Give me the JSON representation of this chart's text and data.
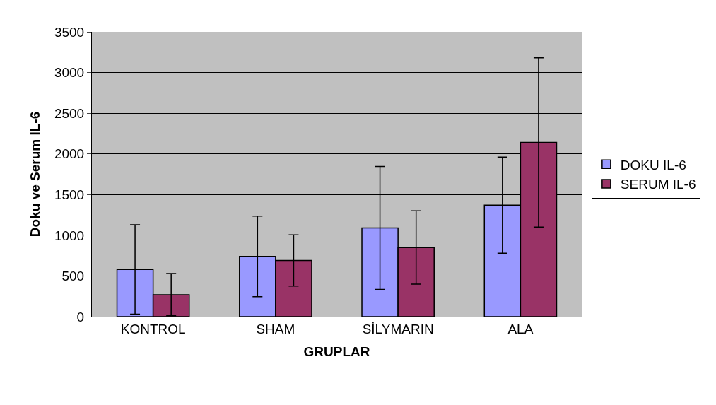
{
  "chart_data": {
    "type": "bar",
    "xlabel": "GRUPLAR",
    "ylabel": "Doku ve Serum IL-6",
    "categories": [
      "KONTROL",
      "SHAM",
      "SİLYMARIN",
      "ALA"
    ],
    "series": [
      {
        "name": "DOKU IL-6",
        "color": "#9999ff",
        "values": [
          580,
          740,
          1090,
          1370
        ],
        "errors": [
          550,
          495,
          755,
          590
        ]
      },
      {
        "name": "SERUM IL-6",
        "color": "#993366",
        "values": [
          270,
          690,
          850,
          2140
        ],
        "errors": [
          260,
          315,
          450,
          1040
        ]
      }
    ],
    "ylim": [
      0,
      3500
    ],
    "yticks": [
      0,
      500,
      1000,
      1500,
      2000,
      2500,
      3000,
      3500
    ],
    "grid": "y",
    "legend": "right"
  }
}
